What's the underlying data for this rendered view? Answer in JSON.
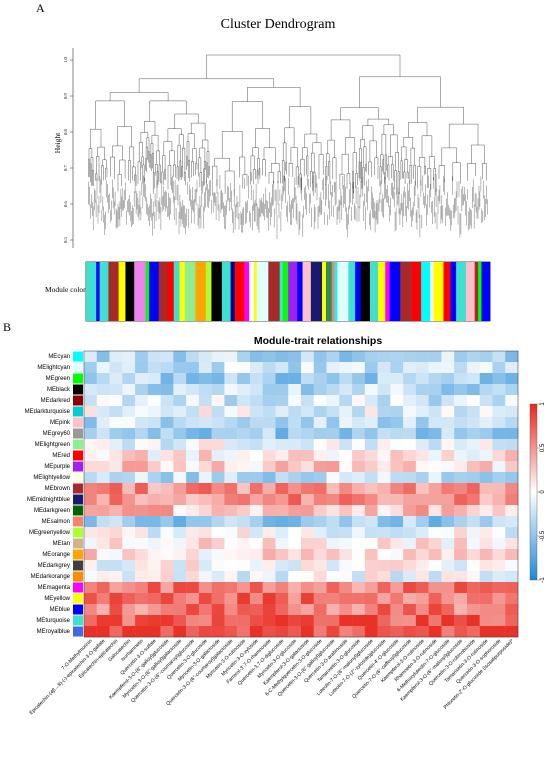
{
  "panel_a": {
    "label": "A",
    "title": "Cluster Dendrogram",
    "ylabel": "Height",
    "yticks": [
      "0.5",
      "0.6",
      "0.7",
      "0.8",
      "0.9",
      "1.0"
    ],
    "module_colors_label": "Module colors",
    "module_colors": [
      "#40e0d0",
      "#0000ff",
      "#40e0d0",
      "#a52a2a",
      "#ffff00",
      "#000000",
      "#ee82ee",
      "#00ff00",
      "#0000ff",
      "#a52a2a",
      "#ff0000",
      "#40e0d0",
      "#ffff00",
      "#90ee90",
      "#ffa500",
      "#adff2f",
      "#000000",
      "#40e0d0",
      "#00008b",
      "#ff0000",
      "#ff00ff",
      "#ffffff",
      "#ffff00",
      "#e0ffff",
      "#a52a2a",
      "#40e0d0",
      "#00ff00",
      "#a020f0",
      "#0000ff",
      "#ffc0cb",
      "#191970",
      "#ffff00",
      "#2e8b57",
      "#fa8072",
      "#00ffff",
      "#e0ffff",
      "#40e0d0",
      "#0000ff",
      "#000000",
      "#40e0d0",
      "#ffff00",
      "#ff00ff",
      "#0000ff",
      "#a52a2a",
      "#ff0000",
      "#00ffff",
      "#ffffff",
      "#ffff00",
      "#ff0000",
      "#0000ff",
      "#40e0d0",
      "#ffc0cb",
      "#a52a2a",
      "#00ff00",
      "#0000ff"
    ]
  },
  "panel_b": {
    "label": "B",
    "title": "Module-trait relationships",
    "legend_ticks": [
      "1",
      "0.5",
      "0",
      "-0.5",
      "-1"
    ],
    "rows": [
      {
        "name": "MEcyan",
        "color": "#00ffff"
      },
      {
        "name": "MElightcyan",
        "color": "#e0ffff"
      },
      {
        "name": "MEgreen",
        "color": "#00ff00"
      },
      {
        "name": "MEblack",
        "color": "#000000"
      },
      {
        "name": "MEdarkred",
        "color": "#8b0000"
      },
      {
        "name": "MEdarkturquoise",
        "color": "#00ced1"
      },
      {
        "name": "MEpink",
        "color": "#ffc0cb"
      },
      {
        "name": "MEgrey60",
        "color": "#999999"
      },
      {
        "name": "MElightgreen",
        "color": "#90ee90"
      },
      {
        "name": "MEred",
        "color": "#ff0000"
      },
      {
        "name": "MEpurple",
        "color": "#a020f0"
      },
      {
        "name": "MElightyellow",
        "color": "#ffffe0"
      },
      {
        "name": "MEbrown",
        "color": "#a52a2a"
      },
      {
        "name": "MEmidnightblue",
        "color": "#191970"
      },
      {
        "name": "MEdarkgreen",
        "color": "#006400"
      },
      {
        "name": "MEsalmon",
        "color": "#fa8072"
      },
      {
        "name": "MEgreenyellow",
        "color": "#adff2f"
      },
      {
        "name": "MEtan",
        "color": "#d2b48c"
      },
      {
        "name": "MEorange",
        "color": "#ffa500"
      },
      {
        "name": "MEdarkgrey",
        "color": "#404040"
      },
      {
        "name": "MEdarkorange",
        "color": "#ff8c00"
      },
      {
        "name": "MEmagenta",
        "color": "#ff00ff"
      },
      {
        "name": "MEyellow",
        "color": "#ffff00"
      },
      {
        "name": "MEblue",
        "color": "#0000ff"
      },
      {
        "name": "MEturquoise",
        "color": "#40e0d0"
      },
      {
        "name": "MEroyalblue",
        "color": "#4169e1"
      }
    ],
    "columns": [
      "7-O-Methylmorinin",
      "Epicatechin-(4β→8)-(-)-epicatechin-3-O-gallate",
      "Epicatechin-epicatechin",
      "Galocatechin",
      "Isorhamnetin",
      "Quercetin-3-O-sulfate",
      "Kaempferol-3-O-(6''-galloyl)glucoside",
      "Myricetin-3-O-(6''-galloyl)galactoside",
      "Quercetin-3-O-(6''-coumaroyl)glucoside",
      "Quercetin-3-O-glucoside",
      "Myricetin-3-O-galactoside",
      "Quercetin-3-O-(6''-coumaroyl)galactoside",
      "Myricetin-3-O-rutinoside",
      "Myricetin-3-O-xyloside",
      "Farrerol-3',7-O-rhamnoside",
      "Quercetin-3,7-O-diglucoside",
      "Myricetin-3-O-glucoside",
      "Kaempferol-3-O-galactoside",
      "6-C-Methylquercetin-3-O-glucoside",
      "Quercetin-3-O-(6''-galloyl)glucoside",
      "Quercetin-3-O-arabinoside",
      "Tamarixetin-3-O-glucoside",
      "Luteolin-7-O-(6''-malonyl)glucoside",
      "Luteolin-7-O-(2''-xyloside)glucoside",
      "Quercetin-4'-O-glucoside",
      "Quercetin-7-O-(6''-caffeoyl)glucoside",
      "Kaempferol-3-O-rutinoside",
      "Rhamnetin-3-O-rutinoside",
      "6-Methoxyluteolin-7-O-glucoside",
      "Kaempferol-3-O-(6''-malonyl)glucoside",
      "Quercetin-3-O-robinobioside",
      "Tamarixetin-3-O-rutinoside",
      "Quercetin-3-O-sophoroside",
      "Phloretin-2'-O-glucoside (Isosalipurposide)*"
    ]
  }
}
